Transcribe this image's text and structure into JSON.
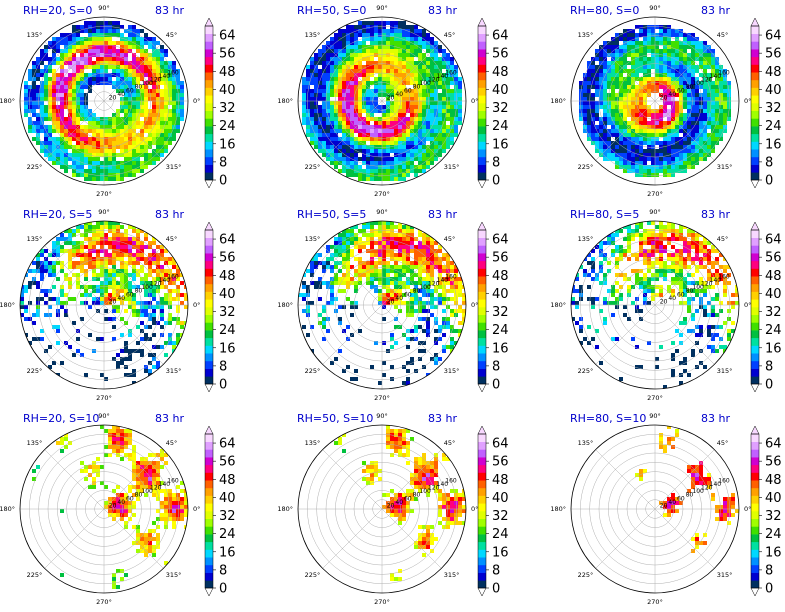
{
  "figure": {
    "time_label": "83 hr",
    "title_color": "#0000cc"
  },
  "chart_data": {
    "type": "heatmap",
    "projection": "polar",
    "angle_tick_labels": [
      "0°",
      "45°",
      "90°",
      "135°",
      "180°",
      "225°",
      "270°",
      "315°"
    ],
    "radial_tick_labels": [
      "20",
      "40",
      "60",
      "80",
      "100",
      "120",
      "140",
      "160"
    ],
    "radial_range": [
      0,
      180
    ],
    "colorbar": {
      "tick_labels": [
        "0",
        "8",
        "16",
        "24",
        "32",
        "40",
        "48",
        "56",
        "64"
      ],
      "range": [
        0,
        68
      ],
      "extend": "both",
      "colors": [
        "#003060",
        "#0000d0",
        "#0040ff",
        "#0090ff",
        "#00d8ff",
        "#00e0a0",
        "#00c040",
        "#40e000",
        "#a0ff00",
        "#e0ff00",
        "#ffff00",
        "#ffd000",
        "#ffa000",
        "#ff6000",
        "#ff0000",
        "#ff0080",
        "#d000d0",
        "#c060ff",
        "#e0a0ff",
        "#f8d8ff"
      ]
    },
    "panels": [
      {
        "title": "RH=20, S=0",
        "rh": 20,
        "s": 0,
        "time": "83 hr",
        "pattern": "ring",
        "inner": 34,
        "outer": 172,
        "ringR": 100,
        "hole": [
          -8,
          8,
          18
        ],
        "coverage": 0.92
      },
      {
        "title": "RH=50, S=0",
        "rh": 50,
        "s": 0,
        "time": "83 hr",
        "pattern": "ring",
        "inner": 12,
        "outer": 175,
        "ringR": 70,
        "hole": [
          0,
          0,
          10
        ],
        "coverage": 0.97
      },
      {
        "title": "RH=80, S=0",
        "rh": 80,
        "s": 0,
        "time": "83 hr",
        "pattern": "ring",
        "inner": 14,
        "outer": 165,
        "ringR": 35,
        "hole": [
          0,
          0,
          12
        ],
        "coverage": 0.95
      },
      {
        "title": "RH=20, S=5",
        "rh": 20,
        "s": 5,
        "time": "83 hr",
        "pattern": "shear",
        "inner": 0,
        "outer": 180,
        "ringR": 90,
        "hole": [
          0,
          0,
          0
        ],
        "coverage": 0.85
      },
      {
        "title": "RH=50, S=5",
        "rh": 50,
        "s": 5,
        "time": "83 hr",
        "pattern": "shear",
        "inner": 0,
        "outer": 180,
        "ringR": 80,
        "hole": [
          -30,
          10,
          25
        ],
        "coverage": 0.88
      },
      {
        "title": "RH=80, S=5",
        "rh": 80,
        "s": 5,
        "time": "83 hr",
        "pattern": "shear",
        "inner": 20,
        "outer": 178,
        "ringR": 60,
        "hole": [
          20,
          -20,
          40
        ],
        "coverage": 0.7
      },
      {
        "title": "RH=20, S=10",
        "rh": 20,
        "s": 10,
        "time": "83 hr",
        "pattern": "sparse",
        "inner": 0,
        "outer": 180,
        "ringR": 100,
        "hole": [
          0,
          0,
          0
        ],
        "coverage": 0.45
      },
      {
        "title": "RH=50, S=10",
        "rh": 50,
        "s": 10,
        "time": "83 hr",
        "pattern": "sparse",
        "inner": 0,
        "outer": 180,
        "ringR": 110,
        "hole": [
          0,
          0,
          0
        ],
        "coverage": 0.35
      },
      {
        "title": "RH=80, S=10",
        "rh": 80,
        "s": 10,
        "time": "83 hr",
        "pattern": "sparse",
        "inner": 0,
        "outer": 180,
        "ringR": 110,
        "hole": [
          0,
          0,
          0
        ],
        "coverage": 0.1
      }
    ]
  }
}
